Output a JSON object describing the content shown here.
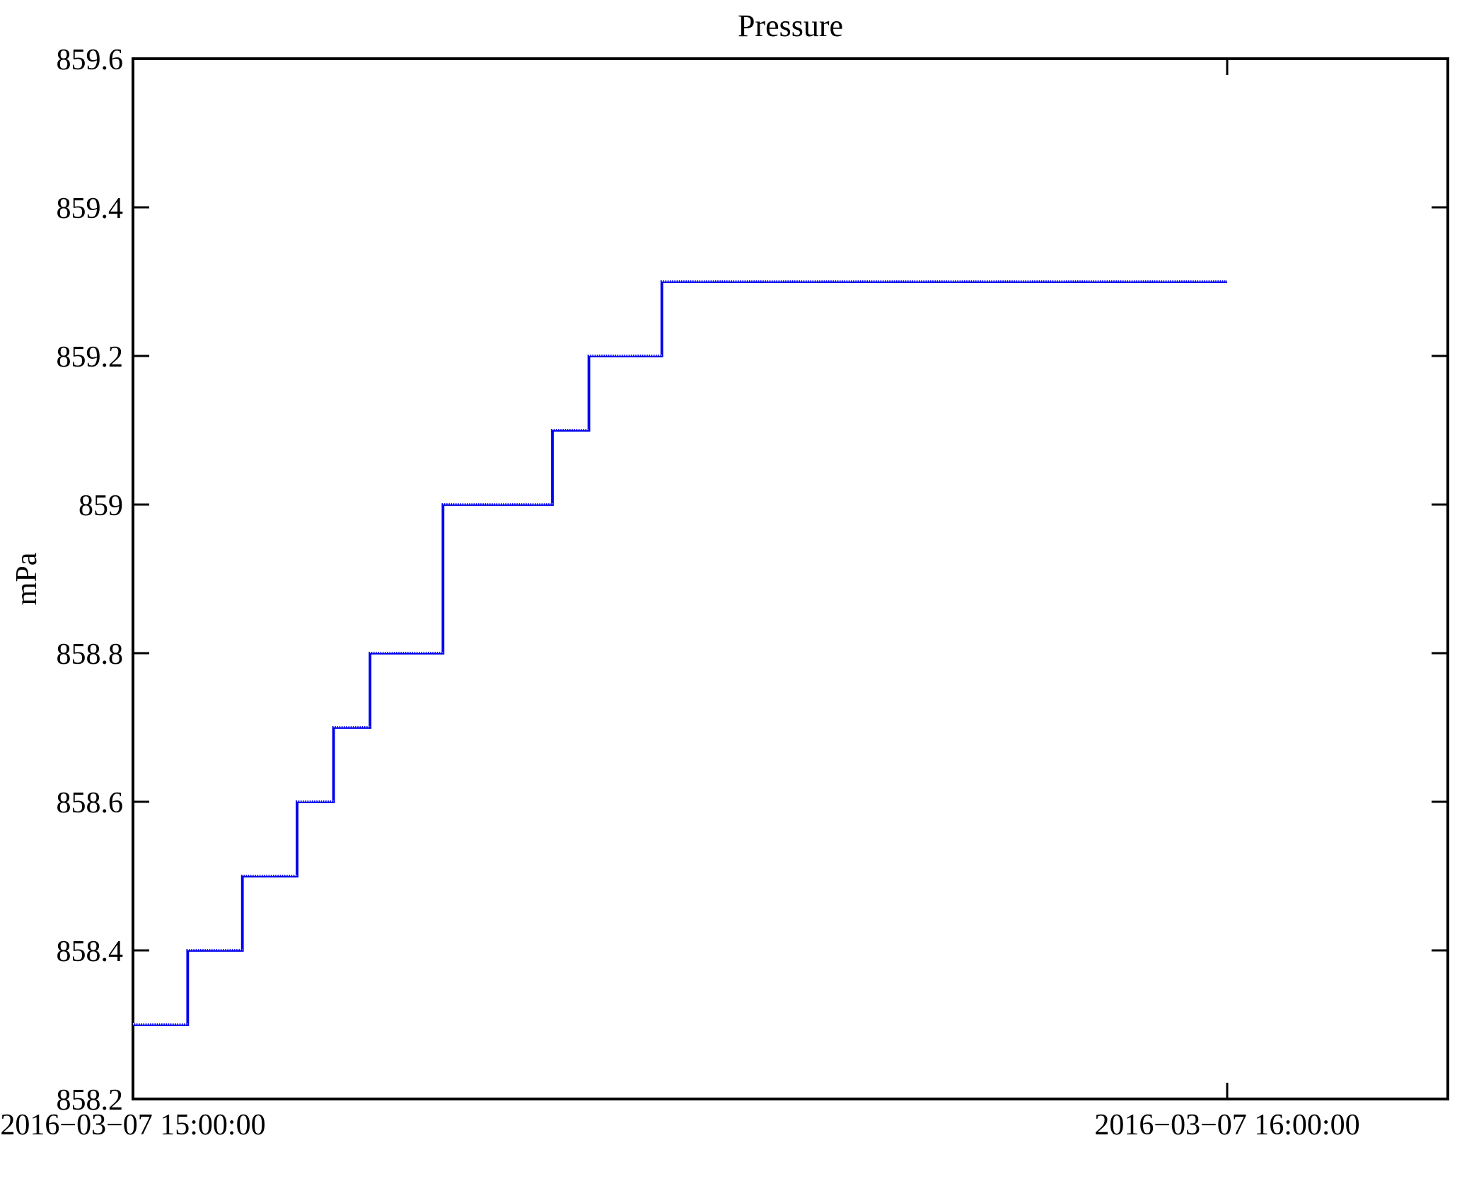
{
  "chart_data": {
    "type": "line",
    "subtype": "step-post",
    "title": "Pressure",
    "xlabel": "",
    "ylabel": "mPa",
    "x_unit": "minutes after 2016−03−07 15:00:00",
    "xlim_minutes": [
      0,
      72.1
    ],
    "ylim": [
      858.2,
      859.6
    ],
    "grid": false,
    "legend": "none",
    "axis_color": "#000000",
    "line_color": "#0000ee",
    "x_ticks": [
      {
        "minutes": 0,
        "label": "2016−03−07 15:00:00"
      },
      {
        "minutes": 60,
        "label": "2016−03−07 16:00:00"
      }
    ],
    "y_ticks": [
      {
        "value": 858.2,
        "label": "858.2"
      },
      {
        "value": 858.4,
        "label": "858.4"
      },
      {
        "value": 858.6,
        "label": "858.6"
      },
      {
        "value": 858.8,
        "label": "858.8"
      },
      {
        "value": 859.0,
        "label": "859"
      },
      {
        "value": 859.2,
        "label": "859.2"
      },
      {
        "value": 859.4,
        "label": "859.4"
      },
      {
        "value": 859.6,
        "label": "859.6"
      }
    ],
    "series": [
      {
        "name": "Pressure",
        "step": "post",
        "points": [
          {
            "minutes": 0,
            "value": 858.3
          },
          {
            "minutes": 3,
            "value": 858.4
          },
          {
            "minutes": 6,
            "value": 858.5
          },
          {
            "minutes": 9,
            "value": 858.6
          },
          {
            "minutes": 11,
            "value": 858.7
          },
          {
            "minutes": 13,
            "value": 858.8
          },
          {
            "minutes": 17,
            "value": 859.0
          },
          {
            "minutes": 23,
            "value": 859.1
          },
          {
            "minutes": 25,
            "value": 859.2
          },
          {
            "minutes": 29,
            "value": 859.3
          },
          {
            "minutes": 60,
            "value": 859.3
          }
        ]
      }
    ]
  }
}
